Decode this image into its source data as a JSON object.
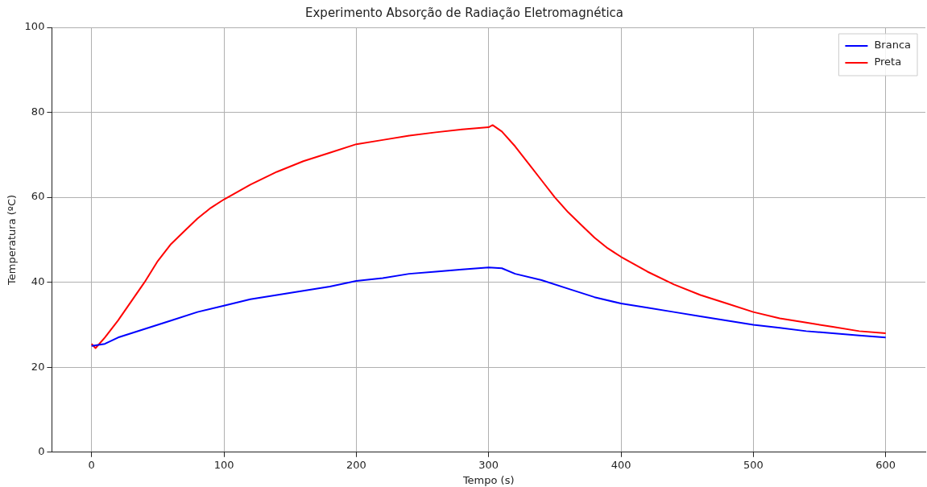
{
  "chart_data": {
    "type": "line",
    "title": "Experimento Absorção de Radiação Eletromagnética",
    "xlabel": "Tempo (s)",
    "ylabel": "Temperatura (ºC)",
    "xlim": [
      -30,
      630
    ],
    "xticks": [
      0,
      100,
      200,
      300,
      400,
      500,
      600
    ],
    "ylim": [
      0,
      100
    ],
    "yticks": [
      0,
      20,
      40,
      60,
      80,
      100
    ],
    "grid": true,
    "legend": "top right",
    "series": [
      {
        "name": "Branca",
        "color": "#0000ff",
        "x": [
          0,
          10,
          20,
          40,
          60,
          80,
          100,
          120,
          140,
          160,
          180,
          200,
          220,
          240,
          260,
          280,
          300,
          310,
          320,
          340,
          360,
          380,
          400,
          420,
          440,
          460,
          480,
          500,
          520,
          540,
          560,
          580,
          600
        ],
        "values": [
          25,
          25.5,
          27,
          29,
          31,
          33,
          34.5,
          36,
          37,
          38,
          39,
          40.3,
          41,
          42,
          42.5,
          43,
          43.5,
          43.3,
          42,
          40.5,
          38.5,
          36.5,
          35,
          34,
          33,
          32,
          31,
          30,
          29.3,
          28.5,
          28,
          27.5,
          27
        ]
      },
      {
        "name": "Preta",
        "color": "#ff0000",
        "x": [
          0,
          3,
          10,
          20,
          30,
          40,
          50,
          60,
          70,
          80,
          90,
          100,
          120,
          140,
          160,
          180,
          200,
          220,
          240,
          260,
          280,
          300,
          303,
          310,
          320,
          330,
          340,
          350,
          360,
          370,
          380,
          390,
          400,
          420,
          440,
          460,
          480,
          500,
          520,
          540,
          560,
          580,
          600
        ],
        "values": [
          25.5,
          24.5,
          27,
          31,
          35.5,
          40,
          45,
          49,
          52,
          55,
          57.5,
          59.5,
          63,
          66,
          68.5,
          70.5,
          72.5,
          73.5,
          74.5,
          75.3,
          76,
          76.5,
          77,
          75.5,
          72,
          68,
          64,
          60,
          56.5,
          53.5,
          50.5,
          48,
          46,
          42.5,
          39.5,
          37,
          35,
          33,
          31.5,
          30.5,
          29.5,
          28.5,
          28
        ]
      }
    ]
  }
}
